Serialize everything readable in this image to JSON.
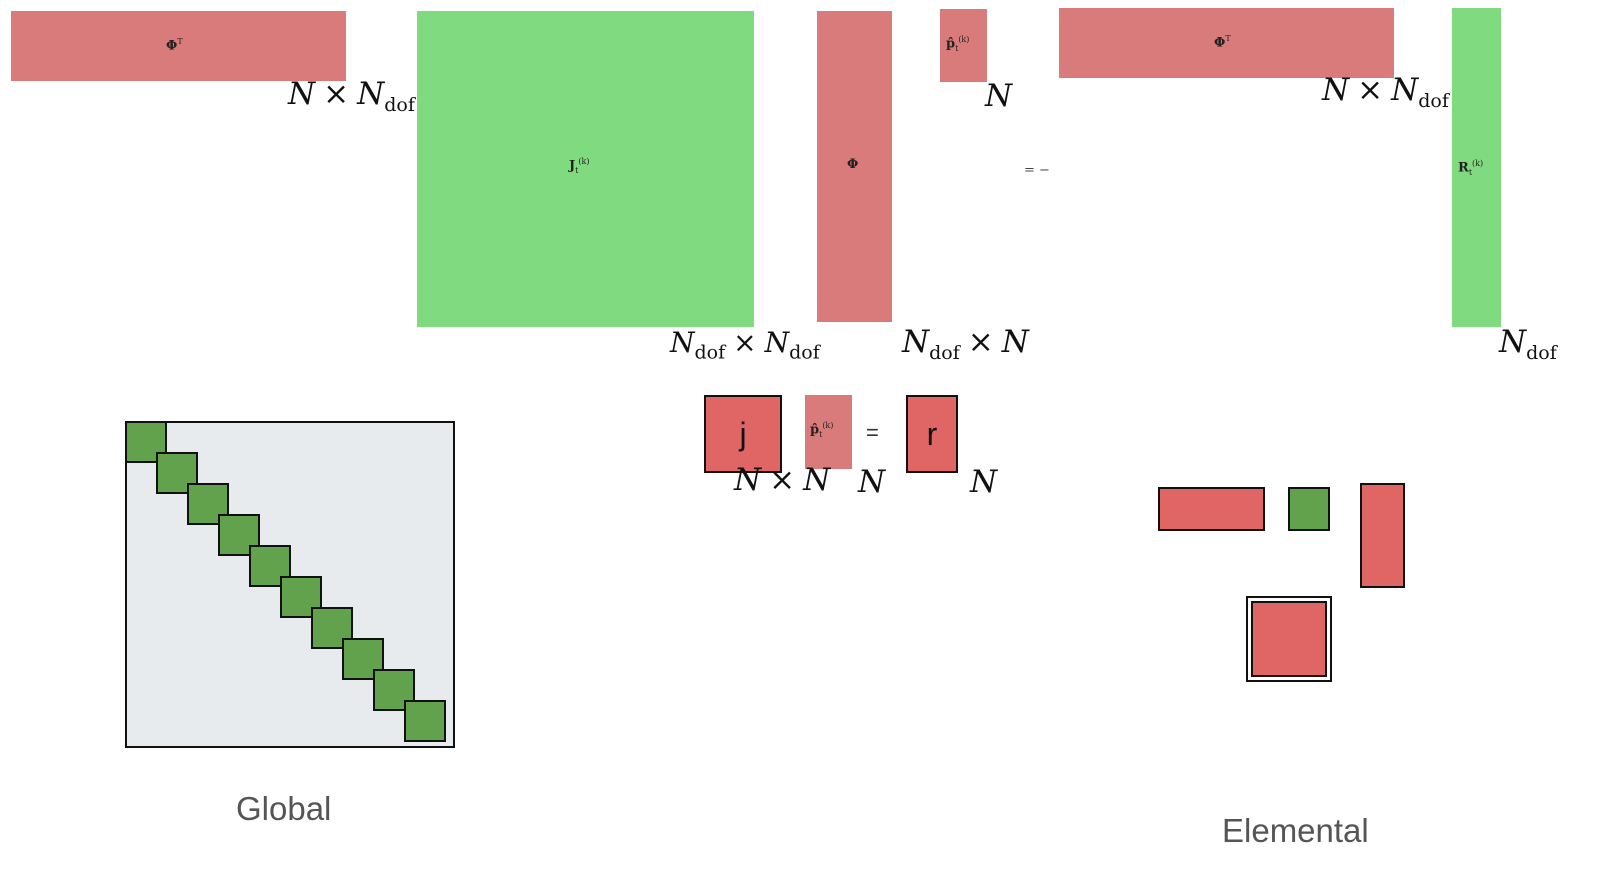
{
  "top_equation": {
    "phi_t_1": {
      "symbol": "Φ",
      "sup": "T"
    },
    "phi_t_1_dims": {
      "a": "N",
      "b": "N",
      "b_sub": "dof"
    },
    "jacobian": {
      "symbol": "J",
      "sup": "(k)",
      "sub": "t"
    },
    "jacobian_dims": {
      "a": "N",
      "a_sub": "dof",
      "b": "N",
      "b_sub": "dof"
    },
    "phi": {
      "symbol": "Φ"
    },
    "phi_dims": {
      "a": "N",
      "a_sub": "dof",
      "b": "N"
    },
    "p_hat": {
      "symbol": "p̂",
      "sup": "(k)",
      "sub": "t"
    },
    "p_hat_dims": "N",
    "equals": "= −",
    "phi_t_2": {
      "symbol": "Φ",
      "sup": "T"
    },
    "phi_t_2_dims": {
      "a": "N",
      "b": "N",
      "b_sub": "dof"
    },
    "residual": {
      "symbol": "R",
      "sup": "(k)",
      "sub": "t"
    },
    "residual_dims": {
      "a": "N",
      "a_sub": "dof"
    },
    "times": "×"
  },
  "reduced_equation": {
    "j_label": "j",
    "p_hat": {
      "symbol": "p̂",
      "sup": "(k)",
      "sub": "t"
    },
    "equals": "=",
    "r_label": "r",
    "j_dims": {
      "a": "N",
      "b": "N"
    },
    "p_dims": "N",
    "r_dims": "N"
  },
  "global_panel": {
    "caption": "Global",
    "diagonal_blocks": 10
  },
  "elemental_panel": {
    "caption": "Elemental"
  },
  "colors": {
    "basis_red": "#d97b7b",
    "matrix_green": "#80da80",
    "block_red": "#e06565",
    "block_green": "#62a24c",
    "sparse_bg": "#e8ebed"
  }
}
